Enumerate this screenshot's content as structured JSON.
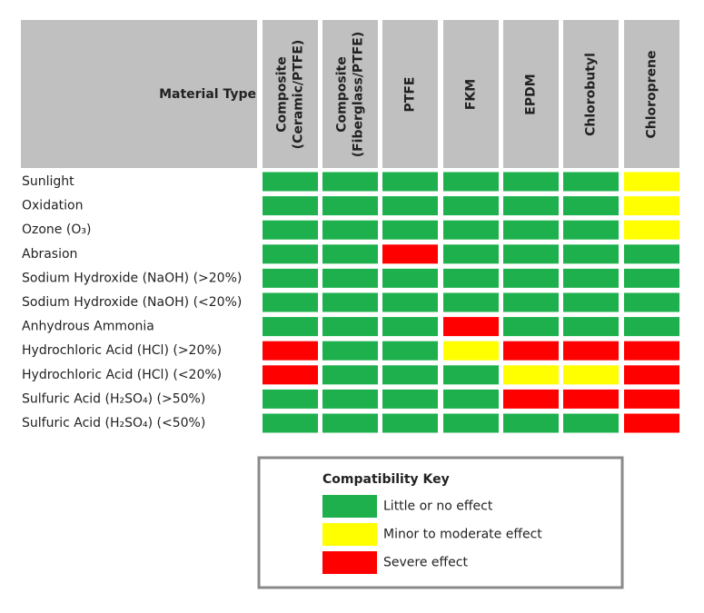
{
  "table": {
    "corner": "Material Type",
    "columns": [
      [
        "Composite",
        "(Ceramic/PTFE)"
      ],
      [
        "Composite",
        "(Fiberglass/PTFE)"
      ],
      [
        "PTFE"
      ],
      [
        "FKM"
      ],
      [
        "EPDM"
      ],
      [
        "Chlorobutyl"
      ],
      [
        "Chloroprene"
      ]
    ],
    "rows": [
      {
        "label": "Sunlight",
        "cells": [
          "#1db04c",
          "#1db04c",
          "#1db04c",
          "#1db04c",
          "#1db04c",
          "#1db04c",
          "#ffff00"
        ]
      },
      {
        "label": "Oxidation",
        "cells": [
          "#1db04c",
          "#1db04c",
          "#1db04c",
          "#1db04c",
          "#1db04c",
          "#1db04c",
          "#ffff00"
        ]
      },
      {
        "label": "Ozone (O₃)",
        "cells": [
          "#1db04c",
          "#1db04c",
          "#1db04c",
          "#1db04c",
          "#1db04c",
          "#1db04c",
          "#ffff00"
        ]
      },
      {
        "label": "Abrasion",
        "cells": [
          "#1db04c",
          "#1db04c",
          "#ff0000",
          "#1db04c",
          "#1db04c",
          "#1db04c",
          "#1db04c"
        ]
      },
      {
        "label": "Sodium Hydroxide (NaOH) (>20%)",
        "cells": [
          "#1db04c",
          "#1db04c",
          "#1db04c",
          "#1db04c",
          "#1db04c",
          "#1db04c",
          "#1db04c"
        ]
      },
      {
        "label": "Sodium Hydroxide (NaOH) (<20%)",
        "cells": [
          "#1db04c",
          "#1db04c",
          "#1db04c",
          "#1db04c",
          "#1db04c",
          "#1db04c",
          "#1db04c"
        ]
      },
      {
        "label": "Anhydrous Ammonia",
        "cells": [
          "#1db04c",
          "#1db04c",
          "#1db04c",
          "#ff0000",
          "#1db04c",
          "#1db04c",
          "#1db04c"
        ]
      },
      {
        "label": "Hydrochloric Acid (HCl) (>20%)",
        "cells": [
          "#ff0000",
          "#1db04c",
          "#1db04c",
          "#ffff00",
          "#ff0000",
          "#ff0000",
          "#ff0000"
        ]
      },
      {
        "label": "Hydrochloric Acid (HCl) (<20%)",
        "cells": [
          "#ff0000",
          "#1db04c",
          "#1db04c",
          "#1db04c",
          "#ffff00",
          "#ffff00",
          "#ff0000"
        ]
      },
      {
        "label": "Sulfuric Acid (H₂SO₄) (>50%)",
        "cells": [
          "#1db04c",
          "#1db04c",
          "#1db04c",
          "#1db04c",
          "#ff0000",
          "#ff0000",
          "#ff0000"
        ]
      },
      {
        "label": "Sulfuric Acid (H₂SO₄) (<50%)",
        "cells": [
          "#1db04c",
          "#1db04c",
          "#1db04c",
          "#1db04c",
          "#1db04c",
          "#1db04c",
          "#ff0000"
        ]
      }
    ]
  },
  "key": {
    "title": "Compatibility Key",
    "items": [
      {
        "label": "Little or no effect",
        "color": "#1db04c"
      },
      {
        "label": "Minor to moderate effect",
        "color": "#ffff00"
      },
      {
        "label": "Severe effect",
        "color": "#ff0000"
      }
    ]
  }
}
